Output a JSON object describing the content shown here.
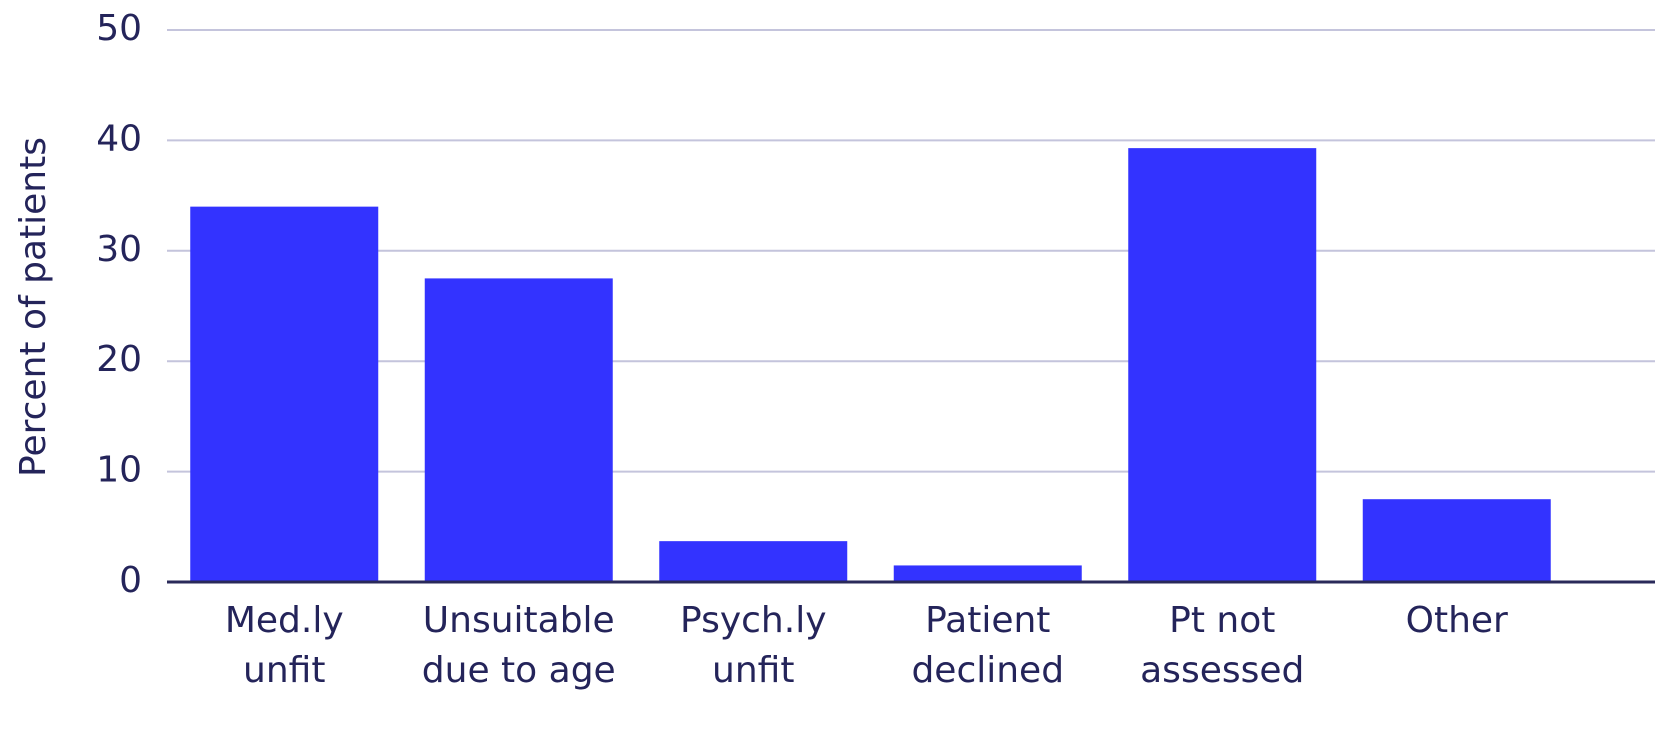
{
  "chart_data": {
    "type": "bar",
    "y_label": "Percent of patients",
    "categories": [
      [
        "Med.ly",
        "unfit"
      ],
      [
        "Unsuitable",
        "due to age"
      ],
      [
        "Psych.ly",
        "unfit"
      ],
      [
        "Patient",
        "declined"
      ],
      [
        "Pt not",
        "assessed"
      ],
      [
        "Other"
      ]
    ],
    "values": [
      34,
      27.5,
      3.7,
      1.5,
      39.3,
      7.5
    ],
    "color": "#3333ff",
    "ylim": [
      0,
      50
    ],
    "yticks": [
      0,
      10,
      20,
      30,
      40,
      50
    ],
    "grid": true
  }
}
